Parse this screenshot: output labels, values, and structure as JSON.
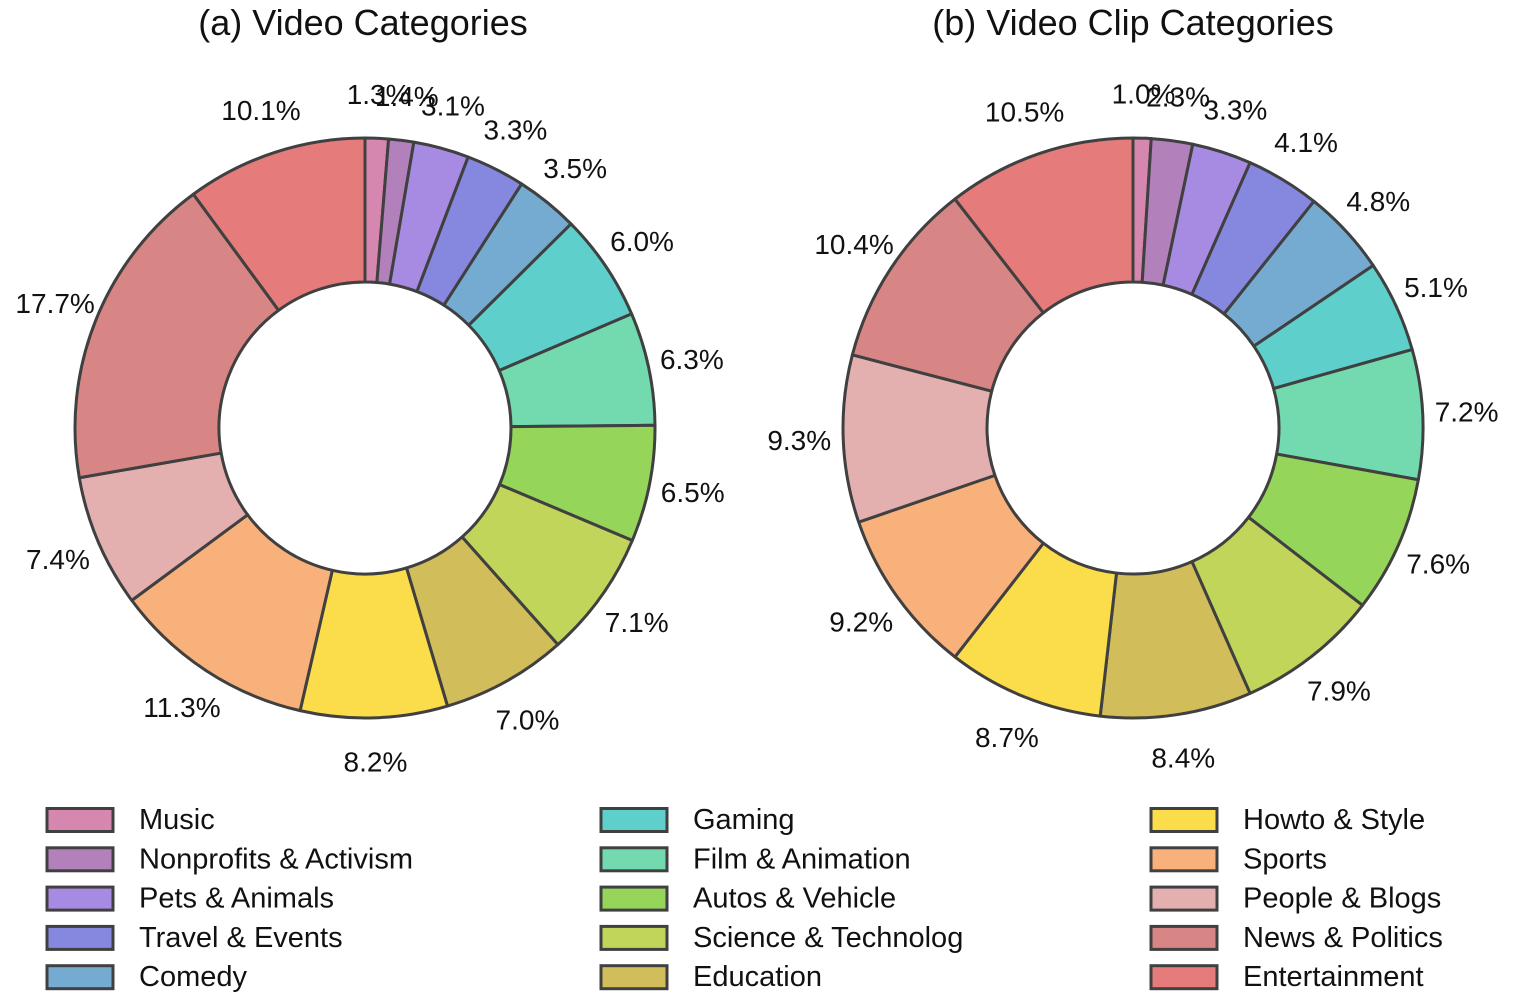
{
  "categories": [
    "Music",
    "Nonprofits & Activism",
    "Pets & Animals",
    "Travel & Events",
    "Comedy",
    "Gaming",
    "Film & Animation",
    "Autos & Vehicle",
    "Science & Technolog",
    "Education",
    "Howto & Style",
    "Sports",
    "People & Blogs",
    "News & Politics",
    "Entertainment"
  ],
  "colors": [
    "#D687B0",
    "#B281BC",
    "#A78BE2",
    "#8688E0",
    "#75ABD1",
    "#5ECFCB",
    "#73D9AE",
    "#94D55A",
    "#C0D55A",
    "#D2BD5B",
    "#FBDC4A",
    "#F9B17C",
    "#E4AFAF",
    "#D88585",
    "#E67B7B"
  ],
  "chart_data": [
    {
      "type": "pie",
      "title": "(a) Video Categories",
      "categories": [
        "Music",
        "Nonprofits & Activism",
        "Pets & Animals",
        "Travel & Events",
        "Comedy",
        "Gaming",
        "Film & Animation",
        "Autos & Vehicle",
        "Science & Technolog",
        "Education",
        "Howto & Style",
        "Sports",
        "People & Blogs",
        "News & Politics",
        "Entertainment"
      ],
      "values": [
        1.3,
        1.4,
        3.1,
        3.3,
        3.5,
        6.0,
        6.3,
        6.5,
        7.1,
        7.0,
        8.2,
        11.3,
        7.4,
        17.7,
        10.1
      ],
      "labels": [
        "1.3%",
        "1.4%",
        "3.1%",
        "3.3%",
        "3.5%",
        "6.0%",
        "6.3%",
        "6.5%",
        "7.1%",
        "7.0%",
        "8.2%",
        "11.3%",
        "7.4%",
        "17.7%",
        "10.1%"
      ]
    },
    {
      "type": "pie",
      "title": "(b) Video Clip Categories",
      "categories": [
        "Music",
        "Nonprofits & Activism",
        "Pets & Animals",
        "Travel & Events",
        "Comedy",
        "Gaming",
        "Film & Animation",
        "Autos & Vehicle",
        "Science & Technolog",
        "Education",
        "Howto & Style",
        "Sports",
        "People & Blogs",
        "News & Politics",
        "Entertainment"
      ],
      "values": [
        1.0,
        2.3,
        3.3,
        4.1,
        4.8,
        5.1,
        7.2,
        7.6,
        7.9,
        8.4,
        8.7,
        9.2,
        9.3,
        10.4,
        10.5
      ],
      "labels": [
        "1.0%",
        "2.3%",
        "3.3%",
        "4.1%",
        "4.8%",
        "5.1%",
        "7.2%",
        "7.6%",
        "7.9%",
        "8.4%",
        "8.7%",
        "9.2%",
        "9.3%",
        "10.4%",
        "10.5%"
      ]
    }
  ]
}
